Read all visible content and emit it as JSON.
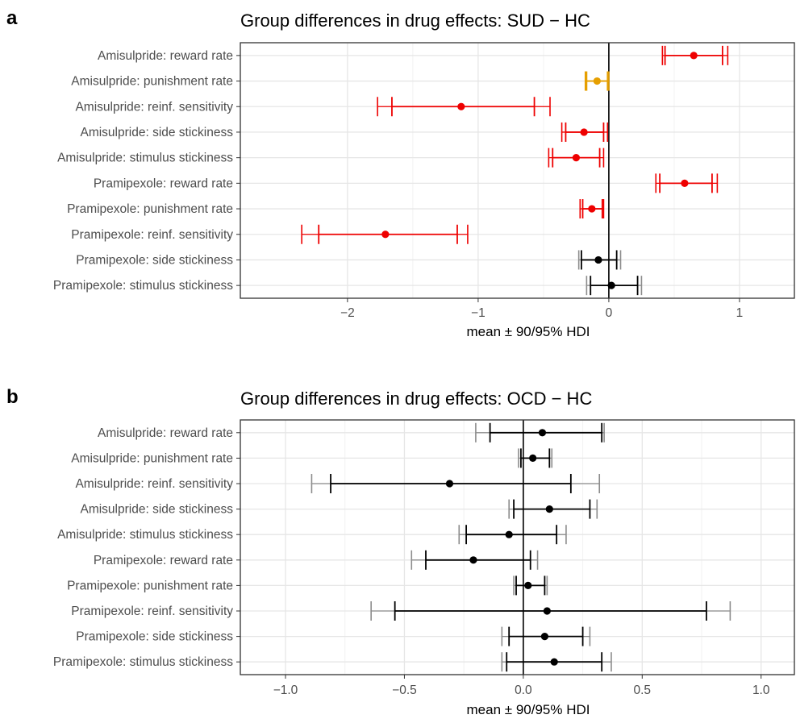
{
  "chart_data": [
    {
      "panel": "a",
      "type": "forest",
      "title": "Group differences in drug effects: SUD − HC",
      "xlabel": "mean ± 90/95% HDI",
      "xlim": [
        -2.82,
        1.42
      ],
      "xticks": [
        -2,
        -1,
        0,
        1
      ],
      "xtick_labels": [
        "−2",
        "−1",
        "0",
        "1"
      ],
      "grid": true,
      "zero_line": true,
      "rows": [
        {
          "label": "Amisulpride: reward rate",
          "mean": 0.65,
          "hdi90": [
            0.43,
            0.87
          ],
          "hdi95": [
            0.41,
            0.91
          ],
          "color": "#ee0000"
        },
        {
          "label": "Amisulpride: punishment rate",
          "mean": -0.09,
          "hdi90": [
            -0.17,
            -0.01
          ],
          "hdi95": [
            -0.18,
            0.0
          ],
          "color": "#e69f00"
        },
        {
          "label": "Amisulpride: reinf. sensitivity",
          "mean": -1.13,
          "hdi90": [
            -1.66,
            -0.57
          ],
          "hdi95": [
            -1.77,
            -0.45
          ],
          "color": "#ee0000"
        },
        {
          "label": "Amisulpride: side stickiness",
          "mean": -0.19,
          "hdi90": [
            -0.33,
            -0.04
          ],
          "hdi95": [
            -0.36,
            -0.01
          ],
          "color": "#ee0000"
        },
        {
          "label": "Amisulpride: stimulus stickiness",
          "mean": -0.25,
          "hdi90": [
            -0.43,
            -0.07
          ],
          "hdi95": [
            -0.46,
            -0.04
          ],
          "color": "#ee0000"
        },
        {
          "label": "Pramipexole: reward rate",
          "mean": 0.58,
          "hdi90": [
            0.39,
            0.79
          ],
          "hdi95": [
            0.36,
            0.83
          ],
          "color": "#ee0000"
        },
        {
          "label": "Pramipexole: punishment rate",
          "mean": -0.13,
          "hdi90": [
            -0.2,
            -0.05
          ],
          "hdi95": [
            -0.22,
            -0.04
          ],
          "color": "#ee0000"
        },
        {
          "label": "Pramipexole: reinf. sensitivity",
          "mean": -1.71,
          "hdi90": [
            -2.22,
            -1.16
          ],
          "hdi95": [
            -2.35,
            -1.08
          ],
          "color": "#ee0000"
        },
        {
          "label": "Pramipexole: side stickiness",
          "mean": -0.08,
          "hdi90": [
            -0.21,
            0.06
          ],
          "hdi95": [
            -0.23,
            0.09
          ],
          "color": "#000000"
        },
        {
          "label": "Pramipexole: stimulus stickiness",
          "mean": 0.02,
          "hdi90": [
            -0.14,
            0.22
          ],
          "hdi95": [
            -0.17,
            0.25
          ],
          "color": "#000000"
        }
      ]
    },
    {
      "panel": "b",
      "type": "forest",
      "title": "Group differences in drug effects: OCD − HC",
      "xlabel": "mean ± 90/95% HDI",
      "xlim": [
        -1.19,
        1.14
      ],
      "xticks": [
        -1.0,
        -0.5,
        0.0,
        0.5,
        1.0
      ],
      "xtick_labels": [
        "−1.0",
        "−0.5",
        "0.0",
        "0.5",
        "1.0"
      ],
      "grid": true,
      "zero_line": true,
      "rows": [
        {
          "label": "Amisulpride: reward rate",
          "mean": 0.08,
          "hdi90": [
            -0.14,
            0.33
          ],
          "hdi95": [
            -0.2,
            0.34
          ],
          "color": "#000000"
        },
        {
          "label": "Amisulpride: punishment rate",
          "mean": 0.04,
          "hdi90": [
            -0.01,
            0.11
          ],
          "hdi95": [
            -0.02,
            0.12
          ],
          "color": "#000000"
        },
        {
          "label": "Amisulpride: reinf. sensitivity",
          "mean": -0.31,
          "hdi90": [
            -0.81,
            0.2
          ],
          "hdi95": [
            -0.89,
            0.32
          ],
          "color": "#000000"
        },
        {
          "label": "Amisulpride: side stickiness",
          "mean": 0.11,
          "hdi90": [
            -0.04,
            0.28
          ],
          "hdi95": [
            -0.06,
            0.31
          ],
          "color": "#000000"
        },
        {
          "label": "Amisulpride: stimulus stickiness",
          "mean": -0.06,
          "hdi90": [
            -0.24,
            0.14
          ],
          "hdi95": [
            -0.27,
            0.18
          ],
          "color": "#000000"
        },
        {
          "label": "Pramipexole: reward rate",
          "mean": -0.21,
          "hdi90": [
            -0.41,
            0.03
          ],
          "hdi95": [
            -0.47,
            0.06
          ],
          "color": "#000000"
        },
        {
          "label": "Pramipexole: punishment rate",
          "mean": 0.02,
          "hdi90": [
            -0.03,
            0.09
          ],
          "hdi95": [
            -0.04,
            0.1
          ],
          "color": "#000000"
        },
        {
          "label": "Pramipexole: reinf. sensitivity",
          "mean": 0.1,
          "hdi90": [
            -0.54,
            0.77
          ],
          "hdi95": [
            -0.64,
            0.87
          ],
          "color": "#000000"
        },
        {
          "label": "Pramipexole: side stickiness",
          "mean": 0.09,
          "hdi90": [
            -0.06,
            0.25
          ],
          "hdi95": [
            -0.09,
            0.28
          ],
          "color": "#000000"
        },
        {
          "label": "Pramipexole: stimulus stickiness",
          "mean": 0.13,
          "hdi90": [
            -0.07,
            0.33
          ],
          "hdi95": [
            -0.09,
            0.37
          ],
          "color": "#000000"
        }
      ]
    }
  ]
}
